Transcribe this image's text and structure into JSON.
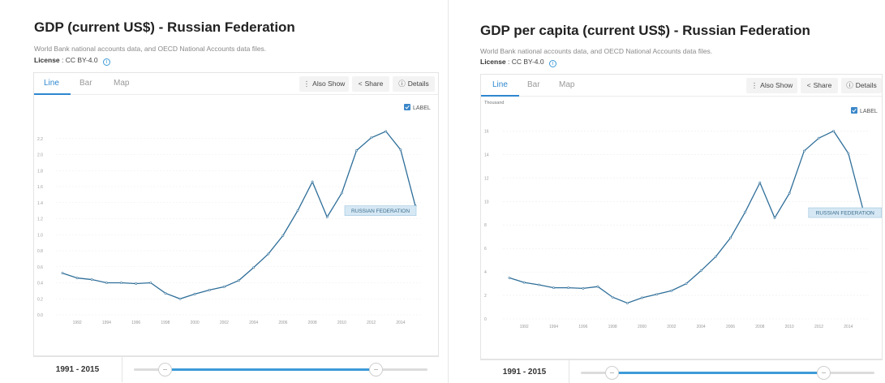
{
  "colors": {
    "accent": "#2f87cf",
    "line": "#2e6e99",
    "badge_bg": "#d6e8f4",
    "slider_fill": "#3d9bd8"
  },
  "panels": [
    {
      "title": "GDP (current US$) - Russian Federation",
      "source": "World Bank national accounts data, and OECD National Accounts data files.",
      "license_label": "License",
      "license_value": ": CC BY-4.0",
      "tabs": [
        "Line",
        "Bar",
        "Map"
      ],
      "active_tab": "Line",
      "buttons": [
        {
          "icon": "vertical-dots-icon",
          "glyph": "⋮",
          "label": "Also Show"
        },
        {
          "icon": "share-icon",
          "glyph": "<",
          "label": "Share"
        },
        {
          "icon": "info-circle-icon",
          "glyph": "ⓘ",
          "label": "Details"
        }
      ],
      "label_toggle": "LABEL",
      "year_range": "1991 - 2015",
      "chart_data": {
        "type": "line",
        "unit_label": "",
        "x": [
          1991,
          1992,
          1993,
          1994,
          1995,
          1996,
          1997,
          1998,
          1999,
          2000,
          2001,
          2002,
          2003,
          2004,
          2005,
          2006,
          2007,
          2008,
          2009,
          2010,
          2011,
          2012,
          2013,
          2014,
          2015
        ],
        "series": [
          {
            "name": "RUSSIAN FEDERATION",
            "values": [
              0.52,
              0.46,
              0.44,
              0.4,
              0.4,
              0.39,
              0.4,
              0.27,
              0.2,
              0.26,
              0.31,
              0.35,
              0.43,
              0.59,
              0.76,
              0.99,
              1.3,
              1.66,
              1.22,
              1.52,
              2.05,
              2.21,
              2.29,
              2.06,
              1.36
            ]
          }
        ],
        "yticks": [
          "0.0",
          "0.2",
          "0.4",
          "0.6",
          "0.8",
          "1.0",
          "1.2",
          "1.4",
          "1.6",
          "1.8",
          "2.0",
          "2.2"
        ],
        "ylim": [
          0,
          2.4
        ],
        "xticks": [
          1992,
          1994,
          1996,
          1998,
          2000,
          2002,
          2004,
          2006,
          2008,
          2010,
          2012,
          2014
        ],
        "grid": true
      }
    },
    {
      "title": "GDP per capita (current US$) - Russian Federation",
      "source": "World Bank national accounts data, and OECD National Accounts data files.",
      "license_label": "License",
      "license_value": ": CC BY-4.0",
      "tabs": [
        "Line",
        "Bar",
        "Map"
      ],
      "active_tab": "Line",
      "buttons": [
        {
          "icon": "vertical-dots-icon",
          "glyph": "⋮",
          "label": "Also Show"
        },
        {
          "icon": "share-icon",
          "glyph": "<",
          "label": "Share"
        },
        {
          "icon": "info-circle-icon",
          "glyph": "ⓘ",
          "label": "Details"
        }
      ],
      "label_toggle": "LABEL",
      "year_range": "1991 - 2015",
      "chart_data": {
        "type": "line",
        "unit_label": "Thousand",
        "x": [
          1991,
          1992,
          1993,
          1994,
          1995,
          1996,
          1997,
          1998,
          1999,
          2000,
          2001,
          2002,
          2003,
          2004,
          2005,
          2006,
          2007,
          2008,
          2009,
          2010,
          2011,
          2012,
          2013,
          2014,
          2015
        ],
        "series": [
          {
            "name": "RUSSIAN FEDERATION",
            "values": [
              3.5,
              3.1,
              2.9,
              2.65,
              2.65,
              2.6,
              2.75,
              1.85,
              1.35,
              1.8,
              2.1,
              2.4,
              3.0,
              4.1,
              5.3,
              6.9,
              9.1,
              11.6,
              8.6,
              10.7,
              14.3,
              15.4,
              16.0,
              14.1,
              9.3
            ]
          }
        ],
        "yticks": [
          "0",
          "2",
          "4",
          "6",
          "8",
          "10",
          "12",
          "14",
          "16"
        ],
        "ylim": [
          0,
          17
        ],
        "xticks": [
          1992,
          1994,
          1996,
          1998,
          2000,
          2002,
          2004,
          2006,
          2008,
          2010,
          2012,
          2014
        ],
        "grid": true
      }
    }
  ]
}
